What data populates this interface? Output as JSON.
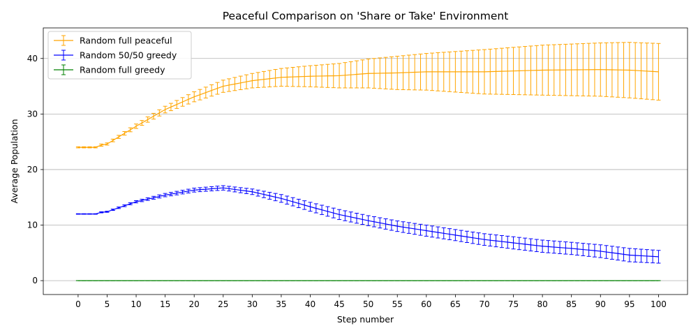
{
  "chart_data": {
    "type": "line",
    "title": "Peaceful Comparison on 'Share or Take' Environment",
    "xlabel": "Step number",
    "ylabel": "Average Population",
    "xlim": [
      -6,
      105
    ],
    "ylim": [
      -2.5,
      45.5
    ],
    "x_ticks": [
      0,
      5,
      10,
      15,
      20,
      25,
      30,
      35,
      40,
      45,
      50,
      55,
      60,
      65,
      70,
      75,
      80,
      85,
      90,
      95,
      100
    ],
    "y_ticks": [
      0,
      10,
      20,
      30,
      40
    ],
    "grid": "horizontal",
    "legend_position": "top-left",
    "error_bars": true,
    "x_range": [
      0,
      100
    ],
    "series": [
      {
        "name": "Random full peaceful",
        "color": "#ffa500",
        "keypoints": [
          {
            "x": 0,
            "y": 24.0,
            "err": 0.1
          },
          {
            "x": 3,
            "y": 24.0,
            "err": 0.1
          },
          {
            "x": 4,
            "y": 24.4,
            "err": 0.2
          },
          {
            "x": 5,
            "y": 24.6,
            "err": 0.2
          },
          {
            "x": 10,
            "y": 27.8,
            "err": 0.4
          },
          {
            "x": 15,
            "y": 30.8,
            "err": 0.6
          },
          {
            "x": 20,
            "y": 33.1,
            "err": 0.9
          },
          {
            "x": 25,
            "y": 35.0,
            "err": 1.1
          },
          {
            "x": 30,
            "y": 36.0,
            "err": 1.3
          },
          {
            "x": 35,
            "y": 36.6,
            "err": 1.6
          },
          {
            "x": 40,
            "y": 36.8,
            "err": 1.9
          },
          {
            "x": 45,
            "y": 36.9,
            "err": 2.2
          },
          {
            "x": 50,
            "y": 37.3,
            "err": 2.6
          },
          {
            "x": 55,
            "y": 37.4,
            "err": 3.0
          },
          {
            "x": 60,
            "y": 37.6,
            "err": 3.3
          },
          {
            "x": 70,
            "y": 37.6,
            "err": 4.0
          },
          {
            "x": 80,
            "y": 37.9,
            "err": 4.5
          },
          {
            "x": 90,
            "y": 38.0,
            "err": 4.8
          },
          {
            "x": 95,
            "y": 37.9,
            "err": 5.0
          },
          {
            "x": 100,
            "y": 37.6,
            "err": 5.1
          }
        ]
      },
      {
        "name": "Random 50/50 greedy",
        "color": "#0000ff",
        "keypoints": [
          {
            "x": 0,
            "y": 12.0,
            "err": 0.05
          },
          {
            "x": 3,
            "y": 12.0,
            "err": 0.05
          },
          {
            "x": 4,
            "y": 12.3,
            "err": 0.1
          },
          {
            "x": 5,
            "y": 12.4,
            "err": 0.1
          },
          {
            "x": 10,
            "y": 14.2,
            "err": 0.2
          },
          {
            "x": 15,
            "y": 15.4,
            "err": 0.3
          },
          {
            "x": 20,
            "y": 16.3,
            "err": 0.35
          },
          {
            "x": 25,
            "y": 16.7,
            "err": 0.4
          },
          {
            "x": 30,
            "y": 16.0,
            "err": 0.5
          },
          {
            "x": 35,
            "y": 14.8,
            "err": 0.7
          },
          {
            "x": 40,
            "y": 13.3,
            "err": 0.8
          },
          {
            "x": 45,
            "y": 11.9,
            "err": 0.9
          },
          {
            "x": 50,
            "y": 10.8,
            "err": 0.9
          },
          {
            "x": 55,
            "y": 9.8,
            "err": 0.95
          },
          {
            "x": 60,
            "y": 9.0,
            "err": 1.0
          },
          {
            "x": 65,
            "y": 8.2,
            "err": 1.0
          },
          {
            "x": 70,
            "y": 7.4,
            "err": 1.05
          },
          {
            "x": 75,
            "y": 6.8,
            "err": 1.1
          },
          {
            "x": 80,
            "y": 6.2,
            "err": 1.1
          },
          {
            "x": 85,
            "y": 5.8,
            "err": 1.1
          },
          {
            "x": 90,
            "y": 5.3,
            "err": 1.15
          },
          {
            "x": 95,
            "y": 4.6,
            "err": 1.2
          },
          {
            "x": 100,
            "y": 4.3,
            "err": 1.15
          }
        ]
      },
      {
        "name": "Random full greedy",
        "color": "#008000",
        "keypoints": [
          {
            "x": 0,
            "y": 0.0,
            "err": 0.0
          },
          {
            "x": 100,
            "y": 0.0,
            "err": 0.0
          }
        ]
      }
    ]
  }
}
